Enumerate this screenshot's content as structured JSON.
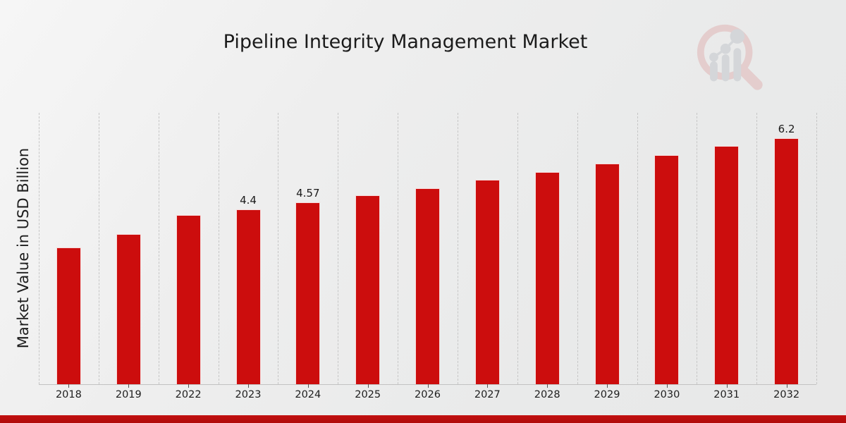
{
  "chart_data": {
    "type": "bar",
    "title": "Pipeline Integrity Management Market",
    "xlabel": "",
    "ylabel": "Market Value in USD Billion",
    "categories": [
      "2018",
      "2019",
      "2022",
      "2023",
      "2024",
      "2025",
      "2026",
      "2027",
      "2028",
      "2029",
      "2030",
      "2031",
      "2032"
    ],
    "values": [
      3.45,
      3.78,
      4.25,
      4.4,
      4.57,
      4.75,
      4.94,
      5.14,
      5.34,
      5.55,
      5.77,
      6.0,
      6.2
    ],
    "value_labels": [
      "",
      "",
      "",
      "4.4",
      "4.57",
      "",
      "",
      "",
      "",
      "",
      "",
      "",
      "6.2"
    ],
    "ylim": [
      0,
      6.83
    ],
    "grid": "vertical-dashed-between-categories",
    "legend": "none",
    "bar_color": "#cc0d0d",
    "gridline_color": "#c6c6c6",
    "axis_line_color": "#c2c2c2",
    "text_color": "#1b1b1b",
    "footer_strip_color": "#b50c0c",
    "units": "USD Billion"
  },
  "watermark": {
    "name": "market-research-future-logo",
    "ring_color": "#e0b6b6",
    "glyph_color": "#c3c6cc"
  }
}
